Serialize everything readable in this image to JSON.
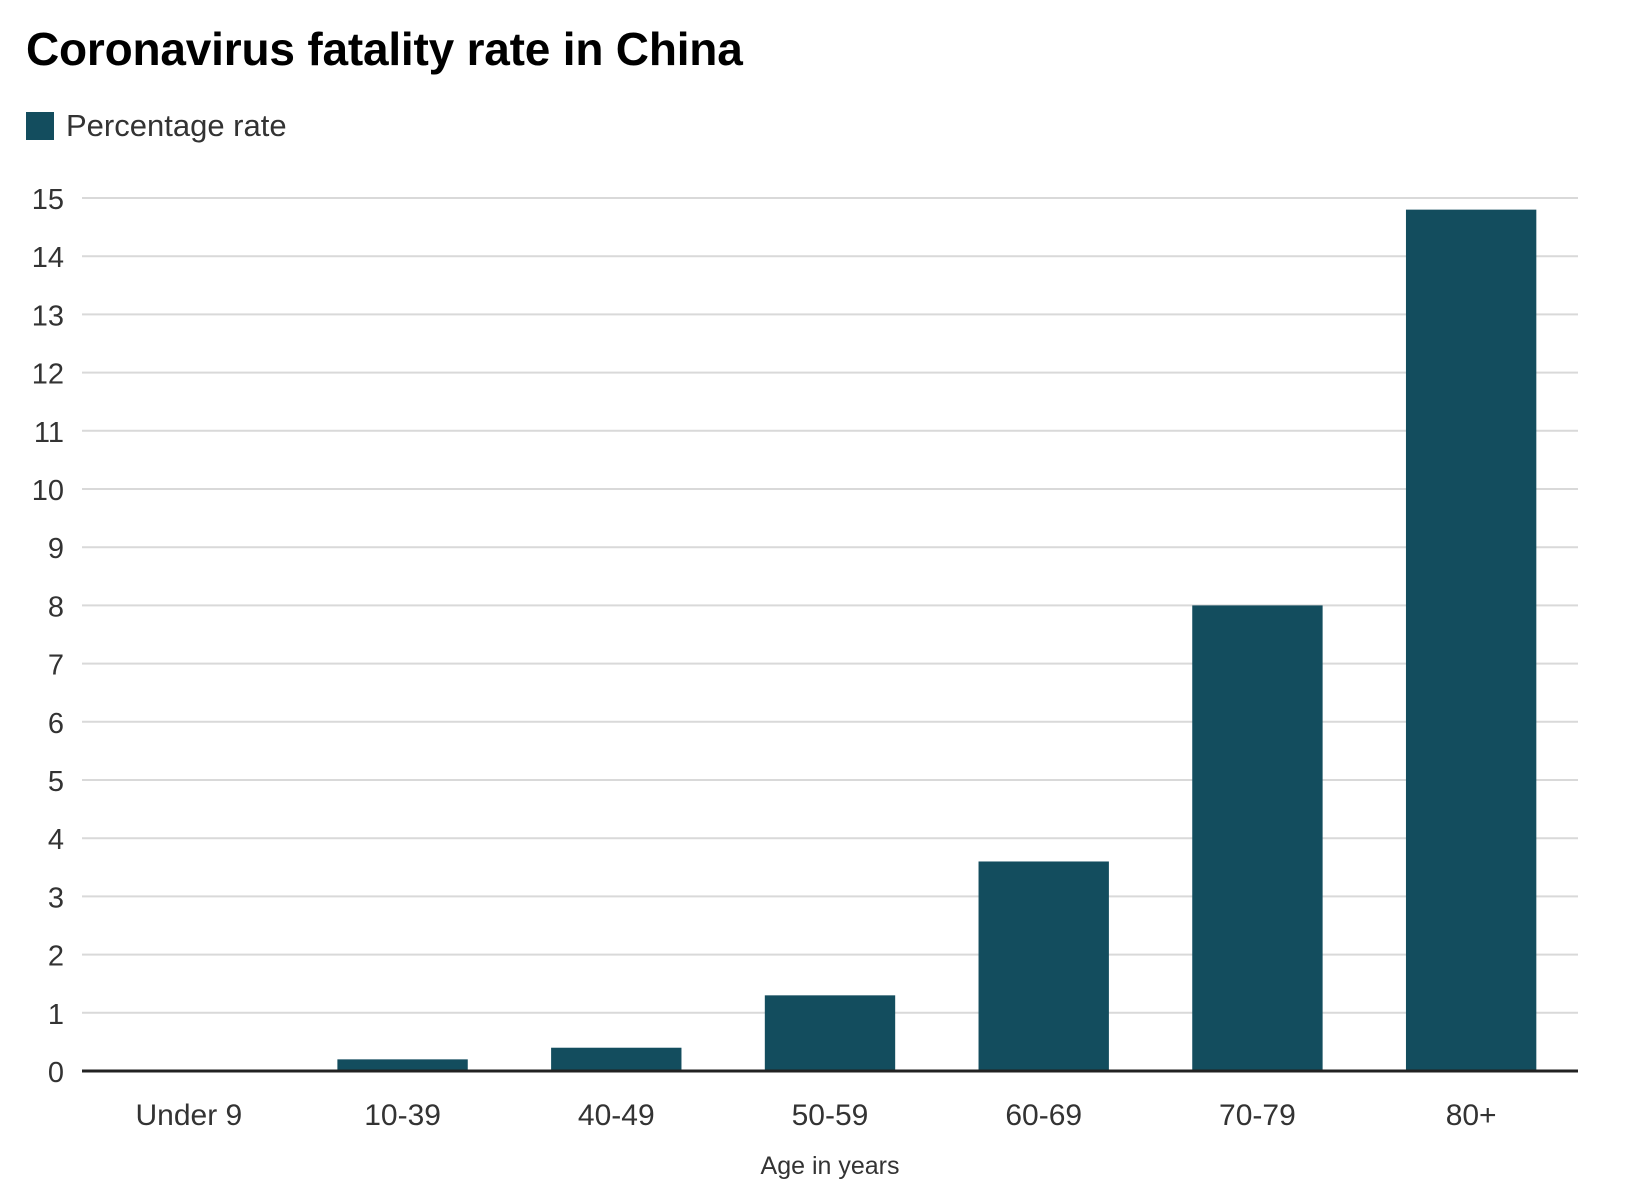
{
  "chart_data": {
    "type": "bar",
    "title": "Coronavirus fatality rate in China",
    "xlabel": "Age in years",
    "ylabel": "",
    "categories": [
      "Under 9",
      "10-39",
      "40-49",
      "50-59",
      "60-69",
      "70-79",
      "80+"
    ],
    "series": [
      {
        "name": "Percentage rate",
        "values": [
          0,
          0.2,
          0.4,
          1.3,
          3.6,
          8.0,
          14.8
        ],
        "color": "#134d5e"
      }
    ],
    "ylim": [
      0,
      15
    ],
    "yticks": [
      0,
      1,
      2,
      3,
      4,
      5,
      6,
      7,
      8,
      9,
      10,
      11,
      12,
      13,
      14,
      15
    ],
    "grid": true,
    "legend_position": "top-left"
  },
  "colors": {
    "bar": "#134d5e",
    "grid": "#d9d9d9",
    "axis": "#222222",
    "tick_text": "#333333"
  }
}
